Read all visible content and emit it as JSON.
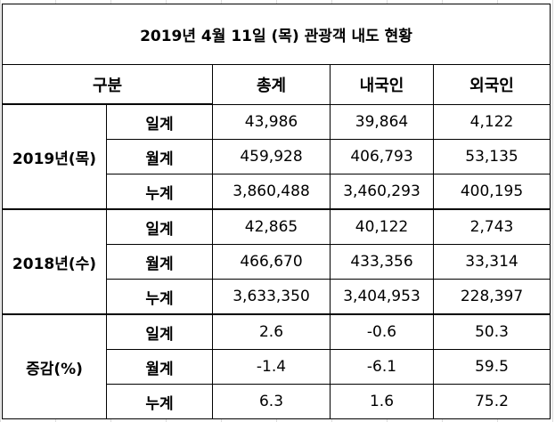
{
  "title": "2019년 4월 11일 (목) 관광객 내도 현황",
  "headers": {
    "group": "구분",
    "total": "총계",
    "domestic": "내국인",
    "foreign": "외국인"
  },
  "groups": [
    {
      "label": "2019년(목)",
      "rows": [
        {
          "period": "일계",
          "total": "43,986",
          "domestic": "39,864",
          "foreign": "4,122"
        },
        {
          "period": "월계",
          "total": "459,928",
          "domestic": "406,793",
          "foreign": "53,135"
        },
        {
          "period": "누계",
          "total": "3,860,488",
          "domestic": "3,460,293",
          "foreign": "400,195"
        }
      ]
    },
    {
      "label": "2018년(수)",
      "rows": [
        {
          "period": "일계",
          "total": "42,865",
          "domestic": "40,122",
          "foreign": "2,743"
        },
        {
          "period": "월계",
          "total": "466,670",
          "domestic": "433,356",
          "foreign": "33,314"
        },
        {
          "period": "누계",
          "total": "3,633,350",
          "domestic": "3,404,953",
          "foreign": "228,397"
        }
      ]
    },
    {
      "label": "증감(%)",
      "rows": [
        {
          "period": "일계",
          "total": "2.6",
          "domestic": "-0.6",
          "foreign": "50.3"
        },
        {
          "period": "월계",
          "total": "-1.4",
          "domestic": "-6.1",
          "foreign": "59.5"
        },
        {
          "period": "누계",
          "total": "6.3",
          "domestic": "1.6",
          "foreign": "75.2"
        }
      ]
    }
  ]
}
